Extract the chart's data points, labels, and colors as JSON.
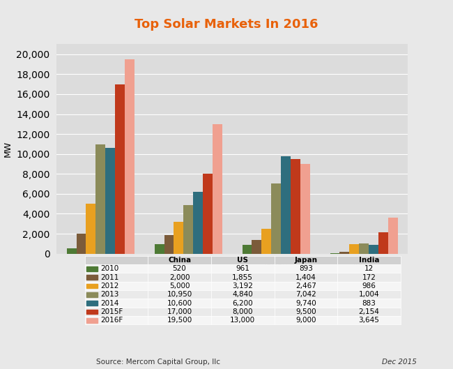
{
  "title": "Top Solar Markets In 2016",
  "title_color": "#E8610A",
  "ylabel": "MW",
  "background_color": "#E8E8E8",
  "plot_bg_color": "#DCDCDC",
  "categories": [
    "China",
    "US",
    "Japan",
    "India"
  ],
  "years": [
    "2010",
    "2011",
    "2012",
    "2013",
    "2014",
    "2015F",
    "2016F"
  ],
  "colors": [
    "#4E7A35",
    "#7B5B3A",
    "#E8A020",
    "#8B8B5A",
    "#2E6E7E",
    "#C0391B",
    "#F0A090"
  ],
  "data": {
    "China": [
      520,
      2000,
      5000,
      10950,
      10600,
      17000,
      19500
    ],
    "US": [
      961,
      1855,
      3192,
      4840,
      6200,
      8000,
      13000
    ],
    "Japan": [
      893,
      1404,
      2467,
      7042,
      9740,
      9500,
      9000
    ],
    "India": [
      12,
      172,
      986,
      1004,
      883,
      2154,
      3645
    ]
  },
  "table_data": {
    "2010": [
      "520",
      "961",
      "893",
      "12"
    ],
    "2011": [
      "2,000",
      "1,855",
      "1,404",
      "172"
    ],
    "2012": [
      "5,000",
      "3,192",
      "2,467",
      "986"
    ],
    "2013": [
      "10,950",
      "4,840",
      "7,042",
      "1,004"
    ],
    "2014": [
      "10,600",
      "6,200",
      "9,740",
      "883"
    ],
    "2015F": [
      "17,000",
      "8,000",
      "9,500",
      "2,154"
    ],
    "2016F": [
      "19,500",
      "13,000",
      "9,000",
      "3,645"
    ]
  },
  "ylim": [
    0,
    21000
  ],
  "yticks": [
    0,
    2000,
    4000,
    6000,
    8000,
    10000,
    12000,
    14000,
    16000,
    18000,
    20000
  ],
  "source_text": "Source: Mercom Capital Group, llc",
  "date_text": "Dec 2015"
}
